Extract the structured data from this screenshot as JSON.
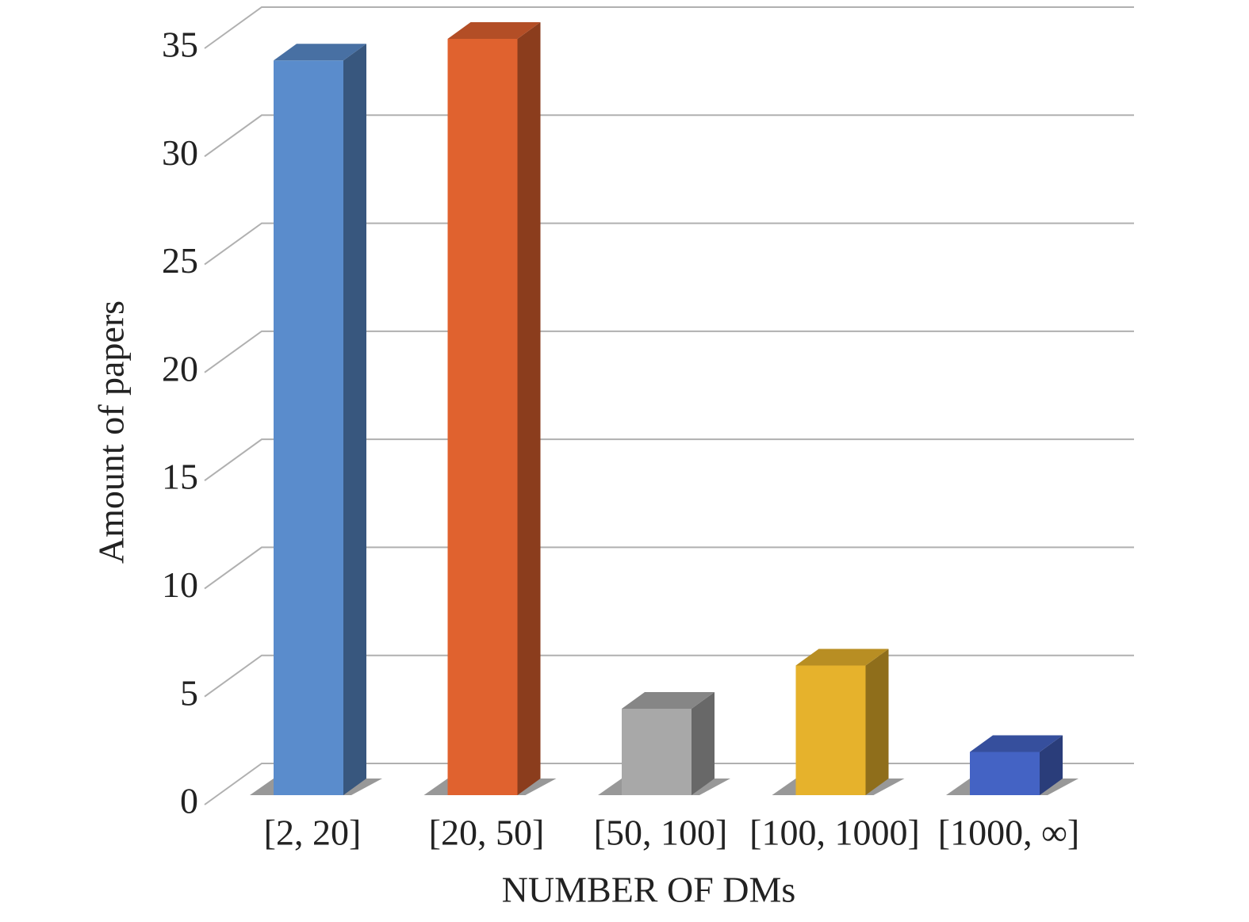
{
  "chart_data": {
    "type": "bar3d",
    "title_y": "Amount of papers",
    "title_x": "NUMBER OF DMs",
    "categories": [
      "[2, 20]",
      "[20, 50]",
      "[50, 100]",
      "[100, 1000]",
      "[1000, ∞]"
    ],
    "values": [
      34,
      35,
      4,
      6,
      2
    ],
    "colors": [
      "#5a8ccc",
      "#e0622f",
      "#a8a8a8",
      "#e6b22c",
      "#4463c4"
    ],
    "ylim": [
      0,
      35
    ],
    "yticks": [
      0,
      5,
      10,
      15,
      20,
      25,
      30,
      35
    ],
    "grid": true
  }
}
